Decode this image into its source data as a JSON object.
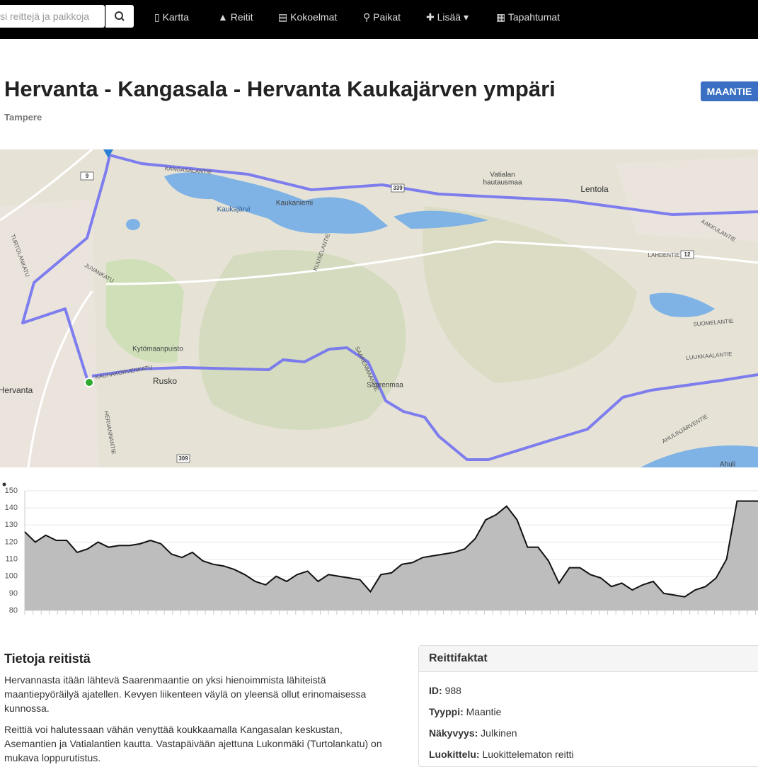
{
  "nav": {
    "search_placeholder": "si reittejä ja paikkoja",
    "items": [
      "Kartta",
      "Reitit",
      "Kokoelmat",
      "Paikat",
      "Lisää",
      "Tapahtumat"
    ]
  },
  "page": {
    "title": "Hervanta - Kangasala - Hervanta Kaukajärven ympäri",
    "badge": "MAANTIE",
    "location": "Tampere"
  },
  "map": {
    "labels": [
      "KANGASALANTIE",
      "Vatialan",
      "hautausmaa",
      "Lentola",
      "Kaukajärvi",
      "Kaukaniemi",
      "KUUSELANTIE",
      "JUVANKATU",
      "TURTOLANKATU",
      "Kytömaanpuisto",
      "Rusko",
      "Hervanta",
      "KAUHAKORVENKATU",
      "HERVANNANTIE",
      "Saarenmaa",
      "SAARENMAANTIE",
      "LAHDENTIE",
      "SUOMELANTIE",
      "LUUKKAALANTIE",
      "AHULINJÄRVENTIE",
      "Ahuli",
      "AAKKULANTIE",
      "9",
      "339",
      "12",
      "309"
    ]
  },
  "chart_data": {
    "type": "area",
    "color": "#bdbdbd",
    "ylim": [
      80,
      150
    ],
    "yticks": [
      80,
      90,
      100,
      110,
      120,
      130,
      140,
      150
    ],
    "grid": true,
    "values": [
      126,
      120,
      124,
      121,
      121,
      114,
      116,
      120,
      117,
      118,
      118,
      119,
      121,
      119,
      113,
      111,
      114,
      109,
      107,
      106,
      104,
      101,
      97,
      95,
      100,
      97,
      101,
      103,
      97,
      101,
      100,
      99,
      98,
      91,
      101,
      102,
      107,
      108,
      111,
      112,
      113,
      114,
      116,
      122,
      133,
      136,
      141,
      133,
      117,
      117,
      109,
      96,
      105,
      105,
      101,
      99,
      94,
      96,
      92,
      95,
      97,
      90,
      89,
      88,
      92,
      94,
      99,
      110,
      144,
      144,
      144
    ]
  },
  "info": {
    "heading": "Tietoja reitistä",
    "paragraphs": [
      "Hervannasta itään lähtevä Saarenmaantie on yksi hienoimmista lähiteistä maantiepyöräilyä ajatellen. Kevyen liikenteen väylä on yleensä ollut erinomaisessa kunnossa.",
      "Reittiä voi halutessaan vähän venyttää koukkaamalla Kangasalan keskustan, Asemantien ja Vatialantien kautta. Vastapäivään ajettuna Lukonmäki (Turtolankatu) on mukava loppurutistus."
    ]
  },
  "facts": {
    "heading": "Reittifaktat",
    "rows": [
      [
        "ID:",
        "988"
      ],
      [
        "Tyyppi:",
        "Maantie"
      ],
      [
        "Näkyvyys:",
        "Julkinen"
      ],
      [
        "Luokittelu:",
        "Luokittelematon reitti"
      ]
    ]
  }
}
